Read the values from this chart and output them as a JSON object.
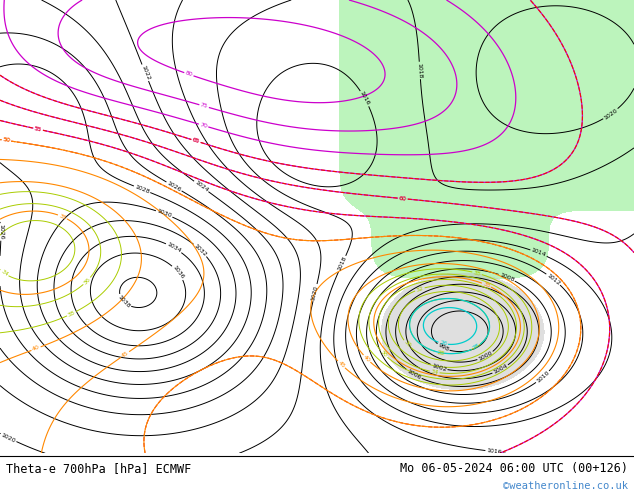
{
  "title_left": "Theta-e 700hPa [hPa] ECMWF",
  "title_right": "Mo 06-05-2024 06:00 UTC (00+126)",
  "credit": "©weatheronline.co.uk",
  "bg_color": "#ffffff",
  "figsize": [
    6.34,
    4.9
  ],
  "dpi": 100,
  "title_fontsize": 8.5,
  "credit_fontsize": 7.5,
  "credit_color": "#4488cc"
}
